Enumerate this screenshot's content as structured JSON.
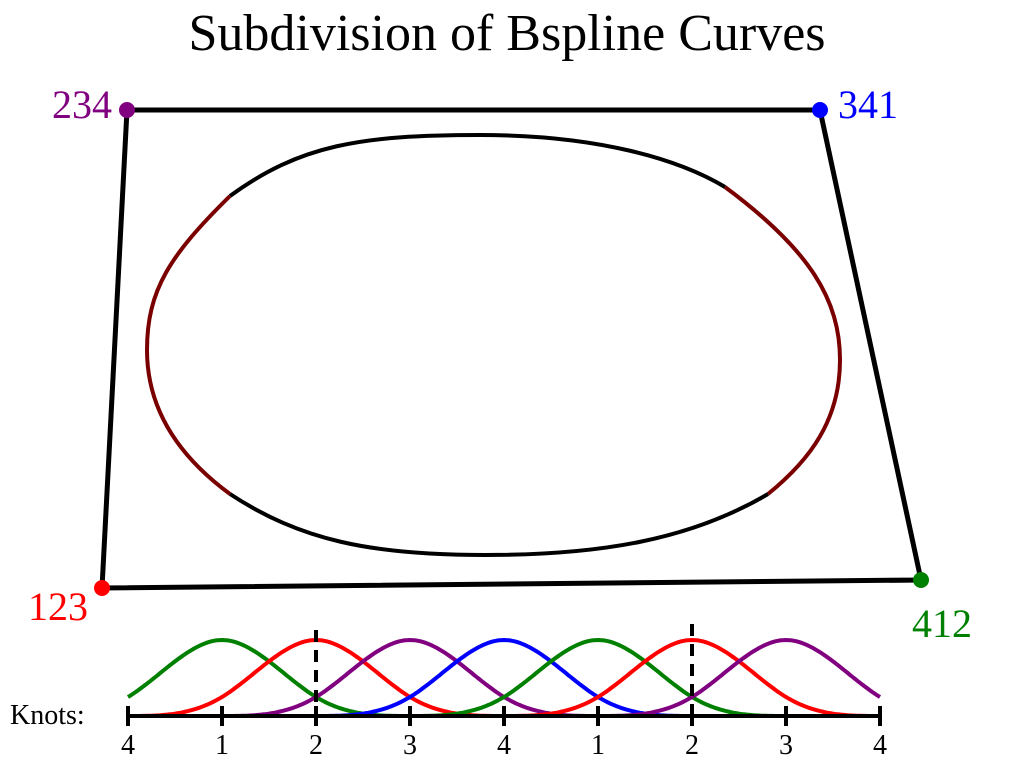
{
  "header": {
    "title": "Subdivision of Bspline Curves"
  },
  "vertices": [
    {
      "label": "123",
      "color": "#ff0000"
    },
    {
      "label": "234",
      "color": "#800080"
    },
    {
      "label": "341",
      "color": "#0000ff"
    },
    {
      "label": "412",
      "color": "#008000"
    }
  ],
  "knots_label": "Knots:",
  "knots": [
    4,
    1,
    2,
    3,
    4,
    1,
    2,
    3,
    4
  ]
}
